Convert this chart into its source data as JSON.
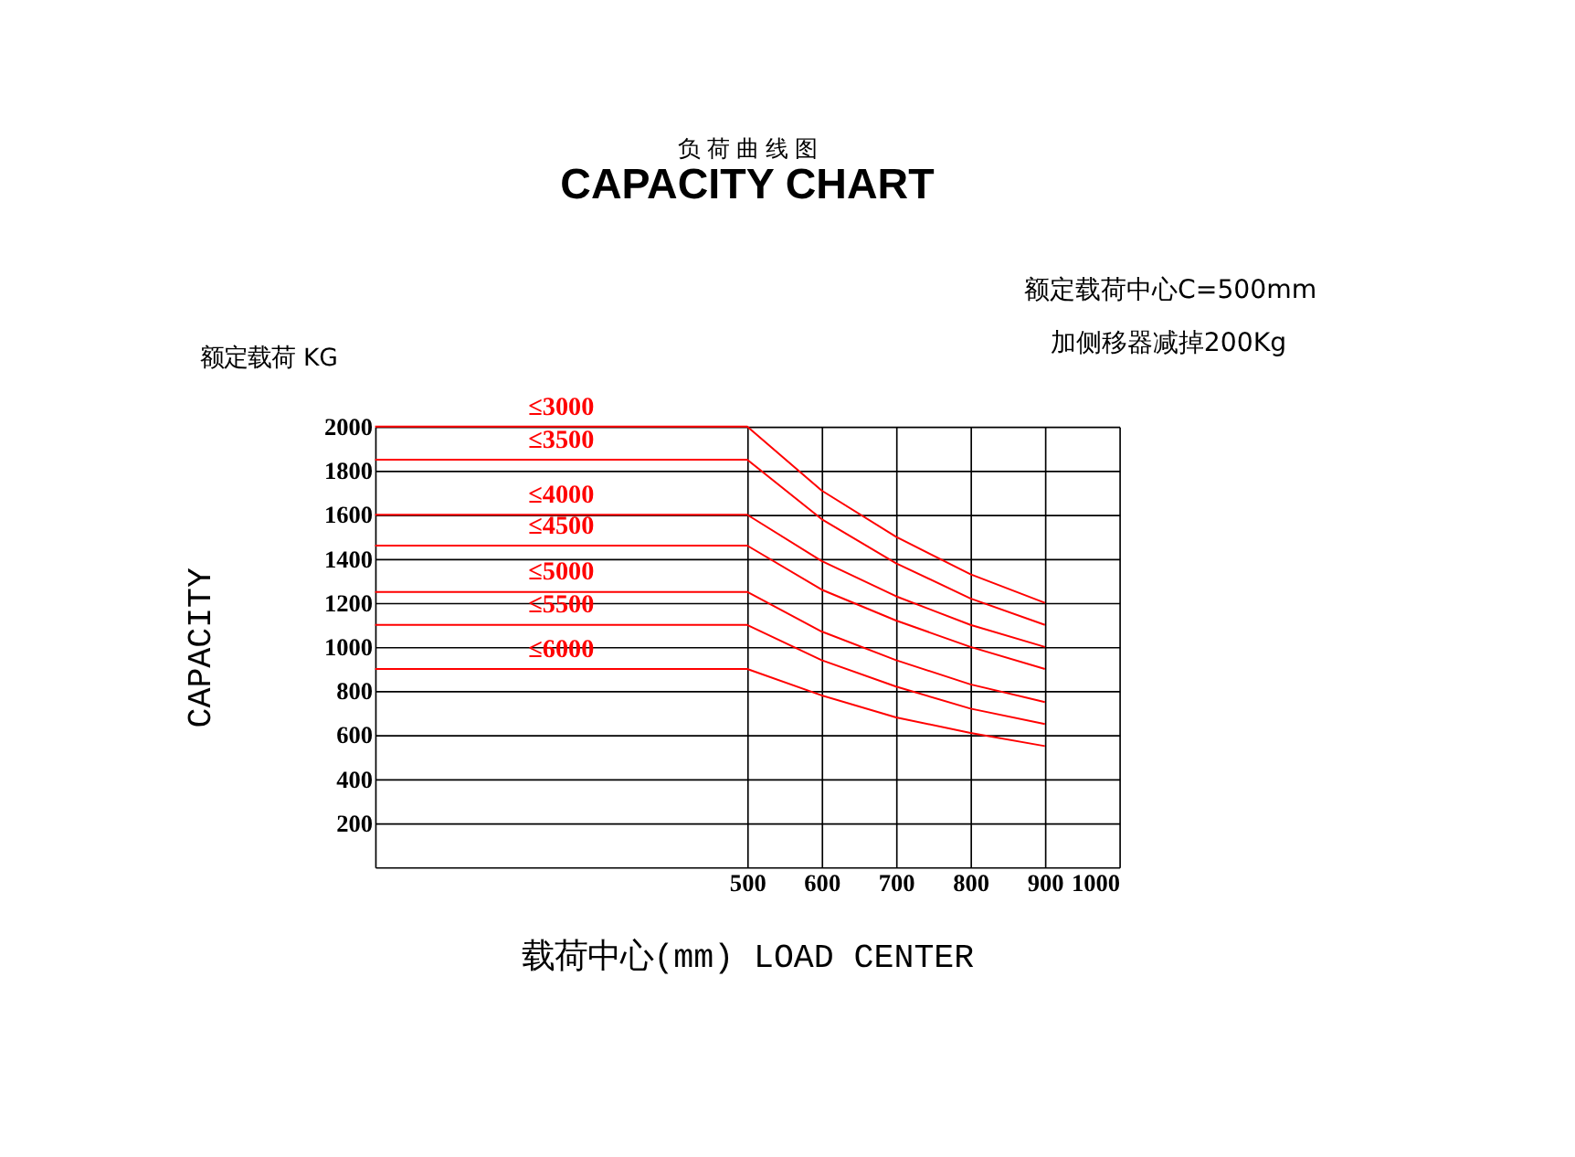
{
  "chart_data": {
    "type": "line",
    "title": "负 荷 曲 线 图",
    "subtitle": "CAPACITY CHART",
    "xlabel": "载荷中心(mm) LOAD CENTER",
    "ylabel": "CAPACITY",
    "annotations": [
      "额定载荷中心C=500mm",
      "加侧移器减掉200Kg",
      "额定载荷 KG"
    ],
    "x": [
      0,
      500,
      600,
      700,
      800,
      900
    ],
    "series": [
      {
        "name": "≤3000",
        "color": "#ff0000",
        "values": [
          2000,
          2000,
          1710,
          1500,
          1330,
          1200
        ]
      },
      {
        "name": "≤3500",
        "color": "#ff0000",
        "values": [
          1850,
          1850,
          1580,
          1380,
          1220,
          1100
        ]
      },
      {
        "name": "≤4000",
        "color": "#ff0000",
        "values": [
          1600,
          1600,
          1390,
          1230,
          1100,
          1000
        ]
      },
      {
        "name": "≤4500",
        "color": "#ff0000",
        "values": [
          1460,
          1460,
          1260,
          1120,
          1000,
          900
        ]
      },
      {
        "name": "≤5000",
        "color": "#ff0000",
        "values": [
          1250,
          1250,
          1070,
          940,
          830,
          750
        ]
      },
      {
        "name": "≤5500",
        "color": "#ff0000",
        "values": [
          1100,
          1100,
          940,
          820,
          720,
          650
        ]
      },
      {
        "name": "≤6000",
        "color": "#ff0000",
        "values": [
          900,
          900,
          780,
          680,
          610,
          550
        ]
      }
    ],
    "xlim": [
      0,
      1000
    ],
    "xticks": [
      500,
      600,
      700,
      800,
      900,
      1000
    ],
    "ylim": [
      0,
      2000
    ],
    "yticks": [
      200,
      400,
      600,
      800,
      1000,
      1200,
      1400,
      1600,
      1800,
      2000
    ],
    "grid": true,
    "legend": false,
    "marker": "none",
    "line_style": "solid"
  }
}
